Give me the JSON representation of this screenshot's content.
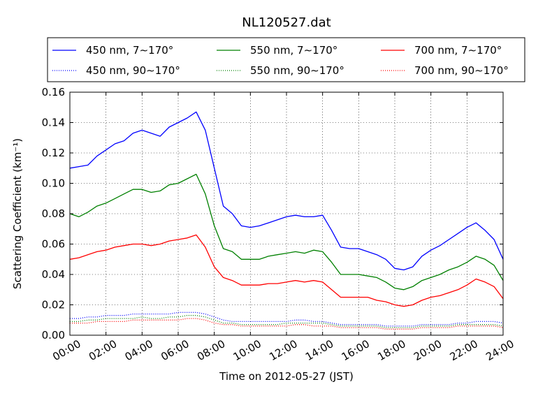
{
  "chart_data": {
    "type": "line",
    "title": "NL120527.dat",
    "xlabel": "Time on 2012-05-27 (JST)",
    "ylabel": "Scattering Coefficient (km⁻¹)",
    "xlim": [
      "00:00",
      "24:00"
    ],
    "ylim": [
      0,
      0.16
    ],
    "x_ticks": [
      "00:00",
      "02:00",
      "04:00",
      "06:00",
      "08:00",
      "10:00",
      "12:00",
      "14:00",
      "16:00",
      "18:00",
      "20:00",
      "22:00",
      "24:00"
    ],
    "y_ticks": [
      "0.00",
      "0.02",
      "0.04",
      "0.06",
      "0.08",
      "0.10",
      "0.12",
      "0.14",
      "0.16"
    ],
    "grid": true,
    "legend_position": "top, above plot",
    "x": [
      "00:00",
      "00:30",
      "01:00",
      "01:30",
      "02:00",
      "02:30",
      "03:00",
      "03:30",
      "04:00",
      "04:30",
      "05:00",
      "05:30",
      "06:00",
      "06:30",
      "07:00",
      "07:30",
      "08:00",
      "08:30",
      "09:00",
      "09:30",
      "10:00",
      "10:30",
      "11:00",
      "11:30",
      "12:00",
      "12:30",
      "13:00",
      "13:30",
      "14:00",
      "14:30",
      "15:00",
      "15:30",
      "16:00",
      "16:30",
      "17:00",
      "17:30",
      "18:00",
      "18:30",
      "19:00",
      "19:30",
      "20:00",
      "20:30",
      "21:00",
      "21:30",
      "22:00",
      "22:30",
      "23:00",
      "23:30",
      "24:00"
    ],
    "series": [
      {
        "name": "450 nm, 7∼170°",
        "color": "#0000ff",
        "style": "solid",
        "values": [
          0.11,
          0.111,
          0.112,
          0.118,
          0.122,
          0.126,
          0.128,
          0.133,
          0.135,
          0.133,
          0.131,
          0.137,
          0.14,
          0.143,
          0.147,
          0.135,
          0.11,
          0.085,
          0.08,
          0.072,
          0.071,
          0.072,
          0.074,
          0.076,
          0.078,
          0.079,
          0.078,
          0.078,
          0.079,
          0.069,
          0.058,
          0.057,
          0.057,
          0.055,
          0.053,
          0.05,
          0.044,
          0.043,
          0.045,
          0.052,
          0.056,
          0.059,
          0.063,
          0.067,
          0.071,
          0.074,
          0.069,
          0.063,
          0.05
        ]
      },
      {
        "name": "550 nm, 7∼170°",
        "color": "#008000",
        "style": "solid",
        "values": [
          0.08,
          0.078,
          0.081,
          0.085,
          0.087,
          0.09,
          0.093,
          0.096,
          0.096,
          0.094,
          0.095,
          0.099,
          0.1,
          0.103,
          0.106,
          0.093,
          0.072,
          0.057,
          0.055,
          0.05,
          0.05,
          0.05,
          0.052,
          0.053,
          0.054,
          0.055,
          0.054,
          0.056,
          0.055,
          0.048,
          0.04,
          0.04,
          0.04,
          0.039,
          0.038,
          0.035,
          0.031,
          0.03,
          0.032,
          0.036,
          0.038,
          0.04,
          0.043,
          0.045,
          0.048,
          0.052,
          0.05,
          0.046,
          0.036
        ]
      },
      {
        "name": "700 nm, 7∼170°",
        "color": "#ff0000",
        "style": "solid",
        "values": [
          0.05,
          0.051,
          0.053,
          0.055,
          0.056,
          0.058,
          0.059,
          0.06,
          0.06,
          0.059,
          0.06,
          0.062,
          0.063,
          0.064,
          0.066,
          0.058,
          0.045,
          0.038,
          0.036,
          0.033,
          0.033,
          0.033,
          0.034,
          0.034,
          0.035,
          0.036,
          0.035,
          0.036,
          0.035,
          0.03,
          0.025,
          0.025,
          0.025,
          0.025,
          0.023,
          0.022,
          0.02,
          0.019,
          0.02,
          0.023,
          0.025,
          0.026,
          0.028,
          0.03,
          0.033,
          0.037,
          0.035,
          0.032,
          0.024
        ]
      },
      {
        "name": "450 nm, 90∼170°",
        "color": "#0000ff",
        "style": "dotted",
        "values": [
          0.011,
          0.011,
          0.012,
          0.012,
          0.013,
          0.013,
          0.013,
          0.014,
          0.014,
          0.014,
          0.014,
          0.014,
          0.015,
          0.015,
          0.015,
          0.014,
          0.012,
          0.01,
          0.009,
          0.009,
          0.009,
          0.009,
          0.009,
          0.009,
          0.009,
          0.01,
          0.01,
          0.009,
          0.009,
          0.008,
          0.007,
          0.007,
          0.007,
          0.007,
          0.007,
          0.006,
          0.006,
          0.006,
          0.006,
          0.007,
          0.007,
          0.007,
          0.007,
          0.008,
          0.008,
          0.009,
          0.009,
          0.009,
          0.008
        ]
      },
      {
        "name": "550 nm, 90∼170°",
        "color": "#008000",
        "style": "dotted",
        "values": [
          0.009,
          0.009,
          0.01,
          0.01,
          0.011,
          0.011,
          0.011,
          0.011,
          0.012,
          0.011,
          0.011,
          0.012,
          0.012,
          0.013,
          0.013,
          0.012,
          0.01,
          0.008,
          0.008,
          0.007,
          0.007,
          0.007,
          0.007,
          0.007,
          0.008,
          0.008,
          0.008,
          0.008,
          0.008,
          0.007,
          0.006,
          0.006,
          0.006,
          0.006,
          0.006,
          0.005,
          0.005,
          0.005,
          0.005,
          0.006,
          0.006,
          0.006,
          0.006,
          0.007,
          0.007,
          0.007,
          0.007,
          0.007,
          0.006
        ]
      },
      {
        "name": "700 nm, 90∼170°",
        "color": "#ff0000",
        "style": "dotted",
        "values": [
          0.008,
          0.008,
          0.008,
          0.009,
          0.009,
          0.009,
          0.009,
          0.01,
          0.01,
          0.01,
          0.01,
          0.01,
          0.01,
          0.011,
          0.011,
          0.01,
          0.008,
          0.007,
          0.007,
          0.006,
          0.006,
          0.006,
          0.006,
          0.006,
          0.006,
          0.007,
          0.007,
          0.006,
          0.006,
          0.006,
          0.005,
          0.005,
          0.005,
          0.005,
          0.005,
          0.004,
          0.004,
          0.004,
          0.004,
          0.005,
          0.005,
          0.005,
          0.005,
          0.006,
          0.006,
          0.006,
          0.006,
          0.006,
          0.005
        ]
      }
    ]
  }
}
